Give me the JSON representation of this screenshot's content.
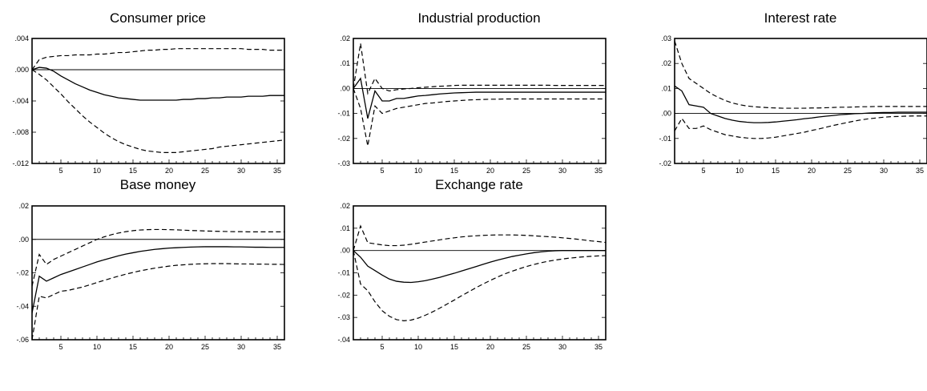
{
  "figure": {
    "colors": {
      "line": "#000000",
      "background": "#ffffff",
      "frame": "#000000"
    }
  },
  "chart_data": [
    {
      "type": "line",
      "title": "Consumer price",
      "xlabel": "",
      "ylabel": "",
      "xlim": [
        1,
        36
      ],
      "ylim": [
        -0.012,
        0.004
      ],
      "grid": false,
      "xticks": [
        5,
        10,
        15,
        20,
        25,
        30,
        35
      ],
      "xtick_labels": [
        "5",
        "10",
        "15",
        "20",
        "25",
        "30",
        "35"
      ],
      "yticks": [
        0.004,
        0.0,
        -0.004,
        -0.008,
        -0.012
      ],
      "ytick_labels": [
        ".004",
        ".000",
        "-.004",
        "-.008",
        "-.012"
      ],
      "x": [
        1,
        2,
        3,
        4,
        5,
        6,
        7,
        8,
        9,
        10,
        11,
        12,
        13,
        14,
        15,
        16,
        17,
        18,
        19,
        20,
        21,
        22,
        23,
        24,
        25,
        26,
        27,
        28,
        29,
        30,
        31,
        32,
        33,
        34,
        35,
        36
      ],
      "series": [
        {
          "style": "solid",
          "values": [
            0.0,
            0.0003,
            0.0002,
            -0.0002,
            -0.0008,
            -0.0013,
            -0.0018,
            -0.0022,
            -0.0026,
            -0.0029,
            -0.0032,
            -0.0034,
            -0.0036,
            -0.0037,
            -0.0038,
            -0.0039,
            -0.0039,
            -0.0039,
            -0.0039,
            -0.0039,
            -0.0039,
            -0.0038,
            -0.0038,
            -0.0037,
            -0.0037,
            -0.0036,
            -0.0036,
            -0.0035,
            -0.0035,
            -0.0035,
            -0.0034,
            -0.0034,
            -0.0034,
            -0.0033,
            -0.0033,
            -0.0033
          ]
        },
        {
          "style": "dashed",
          "values": [
            0.0,
            0.0013,
            0.0016,
            0.0017,
            0.0018,
            0.0018,
            0.0019,
            0.0019,
            0.0019,
            0.002,
            0.002,
            0.0021,
            0.0022,
            0.0022,
            0.0023,
            0.0024,
            0.0025,
            0.0025,
            0.0026,
            0.0026,
            0.0027,
            0.0027,
            0.0027,
            0.0027,
            0.0027,
            0.0027,
            0.0027,
            0.0027,
            0.0027,
            0.0027,
            0.0026,
            0.0026,
            0.0026,
            0.0025,
            0.0025,
            0.0025
          ]
        },
        {
          "style": "dashed",
          "values": [
            0.0,
            -0.0006,
            -0.0013,
            -0.0022,
            -0.0031,
            -0.0041,
            -0.005,
            -0.0059,
            -0.0067,
            -0.0074,
            -0.0081,
            -0.0087,
            -0.0092,
            -0.0096,
            -0.0099,
            -0.0102,
            -0.0104,
            -0.0105,
            -0.0106,
            -0.0106,
            -0.0106,
            -0.0105,
            -0.0104,
            -0.0103,
            -0.0102,
            -0.0101,
            -0.0099,
            -0.0098,
            -0.0097,
            -0.0096,
            -0.0095,
            -0.0094,
            -0.0093,
            -0.0092,
            -0.0091,
            -0.009
          ]
        }
      ]
    },
    {
      "type": "line",
      "title": "Industrial production",
      "xlabel": "",
      "ylabel": "",
      "xlim": [
        1,
        36
      ],
      "ylim": [
        -0.03,
        0.02
      ],
      "grid": false,
      "xticks": [
        5,
        10,
        15,
        20,
        25,
        30,
        35
      ],
      "xtick_labels": [
        "5",
        "10",
        "15",
        "20",
        "25",
        "30",
        "35"
      ],
      "yticks": [
        0.02,
        0.01,
        0.0,
        -0.01,
        -0.02,
        -0.03
      ],
      "ytick_labels": [
        ".02",
        ".01",
        ".00",
        "-.01",
        "-.02",
        "-.03"
      ],
      "x": [
        1,
        2,
        3,
        4,
        5,
        6,
        7,
        8,
        9,
        10,
        11,
        12,
        13,
        14,
        15,
        16,
        17,
        18,
        19,
        20,
        21,
        22,
        23,
        24,
        25,
        26,
        27,
        28,
        29,
        30,
        31,
        32,
        33,
        34,
        35,
        36
      ],
      "series": [
        {
          "style": "solid",
          "values": [
            0.0,
            0.004,
            -0.012,
            -0.001,
            -0.005,
            -0.005,
            -0.004,
            -0.004,
            -0.0035,
            -0.003,
            -0.0028,
            -0.0025,
            -0.0022,
            -0.002,
            -0.0018,
            -0.0017,
            -0.0016,
            -0.0015,
            -0.0015,
            -0.0015,
            -0.0015,
            -0.0015,
            -0.0015,
            -0.0015,
            -0.0015,
            -0.0015,
            -0.0015,
            -0.0015,
            -0.0015,
            -0.0015,
            -0.0015,
            -0.0015,
            -0.0015,
            -0.0015,
            -0.0015,
            -0.0015
          ]
        },
        {
          "style": "dashed",
          "values": [
            0.0,
            0.018,
            -0.002,
            0.004,
            0.0,
            -0.001,
            -0.0005,
            -0.0002,
            0.0,
            0.0003,
            0.0005,
            0.0007,
            0.0009,
            0.001,
            0.0012,
            0.0013,
            0.0013,
            0.0013,
            0.0013,
            0.0013,
            0.0013,
            0.0013,
            0.0013,
            0.0013,
            0.0013,
            0.0013,
            0.0013,
            0.0013,
            0.0012,
            0.0012,
            0.0012,
            0.0012,
            0.0012,
            0.0012,
            0.0012,
            0.0012
          ]
        },
        {
          "style": "dashed",
          "values": [
            0.0,
            -0.008,
            -0.023,
            -0.007,
            -0.01,
            -0.009,
            -0.008,
            -0.0075,
            -0.007,
            -0.0065,
            -0.006,
            -0.0058,
            -0.0055,
            -0.0052,
            -0.005,
            -0.0048,
            -0.0046,
            -0.0045,
            -0.0044,
            -0.0043,
            -0.0043,
            -0.0042,
            -0.0042,
            -0.0042,
            -0.0042,
            -0.0042,
            -0.0042,
            -0.0042,
            -0.0042,
            -0.0042,
            -0.0042,
            -0.0042,
            -0.0042,
            -0.0042,
            -0.0042,
            -0.0042
          ]
        }
      ]
    },
    {
      "type": "line",
      "title": "Interest rate",
      "xlabel": "",
      "ylabel": "",
      "xlim": [
        1,
        36
      ],
      "ylim": [
        -0.02,
        0.03
      ],
      "grid": false,
      "xticks": [
        5,
        10,
        15,
        20,
        25,
        30,
        35
      ],
      "xtick_labels": [
        "5",
        "10",
        "15",
        "20",
        "25",
        "30",
        "35"
      ],
      "yticks": [
        0.03,
        0.02,
        0.01,
        0.0,
        -0.01,
        -0.02
      ],
      "ytick_labels": [
        ".03",
        ".02",
        ".01",
        ".00",
        "-.01",
        "-.02"
      ],
      "x": [
        1,
        2,
        3,
        4,
        5,
        6,
        7,
        8,
        9,
        10,
        11,
        12,
        13,
        14,
        15,
        16,
        17,
        18,
        19,
        20,
        21,
        22,
        23,
        24,
        25,
        26,
        27,
        28,
        29,
        30,
        31,
        32,
        33,
        34,
        35,
        36
      ],
      "series": [
        {
          "style": "solid",
          "values": [
            0.011,
            0.009,
            0.0035,
            0.003,
            0.0025,
            0.0,
            -0.001,
            -0.002,
            -0.0027,
            -0.0032,
            -0.0035,
            -0.0037,
            -0.0037,
            -0.0036,
            -0.0034,
            -0.0031,
            -0.0028,
            -0.0025,
            -0.0021,
            -0.0018,
            -0.0014,
            -0.0011,
            -0.0008,
            -0.0005,
            -0.0003,
            -0.0001,
            0.0,
            0.0002,
            0.0003,
            0.0004,
            0.0004,
            0.0005,
            0.0005,
            0.0005,
            0.0005,
            0.0005
          ]
        },
        {
          "style": "dashed",
          "values": [
            0.029,
            0.02,
            0.014,
            0.012,
            0.01,
            0.008,
            0.0065,
            0.0052,
            0.0042,
            0.0035,
            0.003,
            0.0027,
            0.0025,
            0.0023,
            0.0022,
            0.0021,
            0.0021,
            0.0021,
            0.0021,
            0.0022,
            0.0022,
            0.0023,
            0.0024,
            0.0025,
            0.0025,
            0.0026,
            0.0027,
            0.0027,
            0.0028,
            0.0028,
            0.0028,
            0.0028,
            0.0028,
            0.0028,
            0.0028,
            0.0028
          ]
        },
        {
          "style": "dashed",
          "values": [
            -0.007,
            -0.002,
            -0.006,
            -0.006,
            -0.005,
            -0.0065,
            -0.0075,
            -0.0085,
            -0.009,
            -0.0095,
            -0.0098,
            -0.01,
            -0.01,
            -0.0098,
            -0.0095,
            -0.009,
            -0.0085,
            -0.008,
            -0.0075,
            -0.0068,
            -0.0062,
            -0.0055,
            -0.0048,
            -0.0042,
            -0.0036,
            -0.003,
            -0.0025,
            -0.0021,
            -0.0018,
            -0.0015,
            -0.0013,
            -0.0012,
            -0.0011,
            -0.001,
            -0.001,
            -0.001
          ]
        }
      ]
    },
    {
      "type": "line",
      "title": "Base money",
      "xlabel": "",
      "ylabel": "",
      "xlim": [
        1,
        36
      ],
      "ylim": [
        -0.06,
        0.02
      ],
      "grid": false,
      "xticks": [
        5,
        10,
        15,
        20,
        25,
        30,
        35
      ],
      "xtick_labels": [
        "5",
        "10",
        "15",
        "20",
        "25",
        "30",
        "35"
      ],
      "yticks": [
        0.02,
        0.0,
        -0.02,
        -0.04,
        -0.06
      ],
      "ytick_labels": [
        ".02",
        ".00",
        "-.02",
        "-.04",
        "-.06"
      ],
      "x": [
        1,
        2,
        3,
        4,
        5,
        6,
        7,
        8,
        9,
        10,
        11,
        12,
        13,
        14,
        15,
        16,
        17,
        18,
        19,
        20,
        21,
        22,
        23,
        24,
        25,
        26,
        27,
        28,
        29,
        30,
        31,
        32,
        33,
        34,
        35,
        36
      ],
      "series": [
        {
          "style": "solid",
          "values": [
            -0.044,
            -0.022,
            -0.025,
            -0.023,
            -0.021,
            -0.0195,
            -0.018,
            -0.0165,
            -0.015,
            -0.0135,
            -0.0122,
            -0.011,
            -0.0098,
            -0.0088,
            -0.008,
            -0.0072,
            -0.0066,
            -0.006,
            -0.0056,
            -0.0052,
            -0.005,
            -0.0048,
            -0.0046,
            -0.0045,
            -0.0044,
            -0.0044,
            -0.0044,
            -0.0044,
            -0.0045,
            -0.0045,
            -0.0046,
            -0.0047,
            -0.0047,
            -0.0048,
            -0.0048,
            -0.0048
          ]
        },
        {
          "style": "dashed",
          "values": [
            -0.028,
            -0.009,
            -0.015,
            -0.012,
            -0.01,
            -0.008,
            -0.006,
            -0.004,
            -0.002,
            0.0,
            0.0015,
            0.0028,
            0.0038,
            0.0046,
            0.0052,
            0.0056,
            0.0058,
            0.0059,
            0.0059,
            0.0058,
            0.0057,
            0.0055,
            0.0053,
            0.0052,
            0.005,
            0.0049,
            0.0048,
            0.0047,
            0.0046,
            0.0046,
            0.0045,
            0.0045,
            0.0045,
            0.0045,
            0.0045,
            0.0045
          ]
        },
        {
          "style": "dashed",
          "values": [
            -0.06,
            -0.034,
            -0.035,
            -0.033,
            -0.031,
            -0.0305,
            -0.0295,
            -0.0285,
            -0.0272,
            -0.0258,
            -0.0245,
            -0.0232,
            -0.022,
            -0.0208,
            -0.0198,
            -0.0188,
            -0.018,
            -0.0172,
            -0.0166,
            -0.016,
            -0.0155,
            -0.0152,
            -0.0149,
            -0.0147,
            -0.0146,
            -0.0145,
            -0.0145,
            -0.0145,
            -0.0146,
            -0.0147,
            -0.0147,
            -0.0148,
            -0.0148,
            -0.0149,
            -0.0149,
            -0.015
          ]
        }
      ]
    },
    {
      "type": "line",
      "title": "Exchange rate",
      "xlabel": "",
      "ylabel": "",
      "xlim": [
        1,
        36
      ],
      "ylim": [
        -0.04,
        0.02
      ],
      "grid": false,
      "xticks": [
        5,
        10,
        15,
        20,
        25,
        30,
        35
      ],
      "xtick_labels": [
        "5",
        "10",
        "15",
        "20",
        "25",
        "30",
        "35"
      ],
      "yticks": [
        0.02,
        0.01,
        0.0,
        -0.01,
        -0.02,
        -0.03,
        -0.04
      ],
      "ytick_labels": [
        ".02",
        ".01",
        ".00",
        "-.01",
        "-.02",
        "-.03",
        "-.04"
      ],
      "x": [
        1,
        2,
        3,
        4,
        5,
        6,
        7,
        8,
        9,
        10,
        11,
        12,
        13,
        14,
        15,
        16,
        17,
        18,
        19,
        20,
        21,
        22,
        23,
        24,
        25,
        26,
        27,
        28,
        29,
        30,
        31,
        32,
        33,
        34,
        35,
        36
      ],
      "series": [
        {
          "style": "solid",
          "values": [
            0.0,
            -0.003,
            -0.007,
            -0.009,
            -0.011,
            -0.0128,
            -0.0138,
            -0.0142,
            -0.0143,
            -0.014,
            -0.0135,
            -0.0128,
            -0.012,
            -0.0111,
            -0.0102,
            -0.0092,
            -0.0082,
            -0.0072,
            -0.0062,
            -0.0052,
            -0.0043,
            -0.0035,
            -0.0027,
            -0.0021,
            -0.0015,
            -0.001,
            -0.0006,
            -0.0003,
            -0.0001,
            0.0,
            0.0,
            0.0,
            0.0,
            0.0,
            0.0,
            0.0
          ]
        },
        {
          "style": "dashed",
          "values": [
            0.0,
            0.011,
            0.0035,
            0.003,
            0.0025,
            0.0022,
            0.0022,
            0.0024,
            0.0028,
            0.0033,
            0.0038,
            0.0043,
            0.0048,
            0.0053,
            0.0057,
            0.0061,
            0.0064,
            0.0066,
            0.0068,
            0.0069,
            0.007,
            0.007,
            0.007,
            0.0069,
            0.0068,
            0.0066,
            0.0064,
            0.0062,
            0.006,
            0.0057,
            0.0054,
            0.0051,
            0.0047,
            0.0043,
            0.004,
            0.0036
          ]
        },
        {
          "style": "dashed",
          "values": [
            0.0,
            -0.015,
            -0.018,
            -0.023,
            -0.027,
            -0.0295,
            -0.031,
            -0.0315,
            -0.0312,
            -0.0303,
            -0.029,
            -0.0275,
            -0.0258,
            -0.024,
            -0.0222,
            -0.0203,
            -0.0185,
            -0.0167,
            -0.015,
            -0.0134,
            -0.0119,
            -0.0105,
            -0.0093,
            -0.0082,
            -0.0072,
            -0.0063,
            -0.0055,
            -0.0048,
            -0.0043,
            -0.0038,
            -0.0034,
            -0.0031,
            -0.0028,
            -0.0026,
            -0.0024,
            -0.0023
          ]
        }
      ]
    }
  ]
}
